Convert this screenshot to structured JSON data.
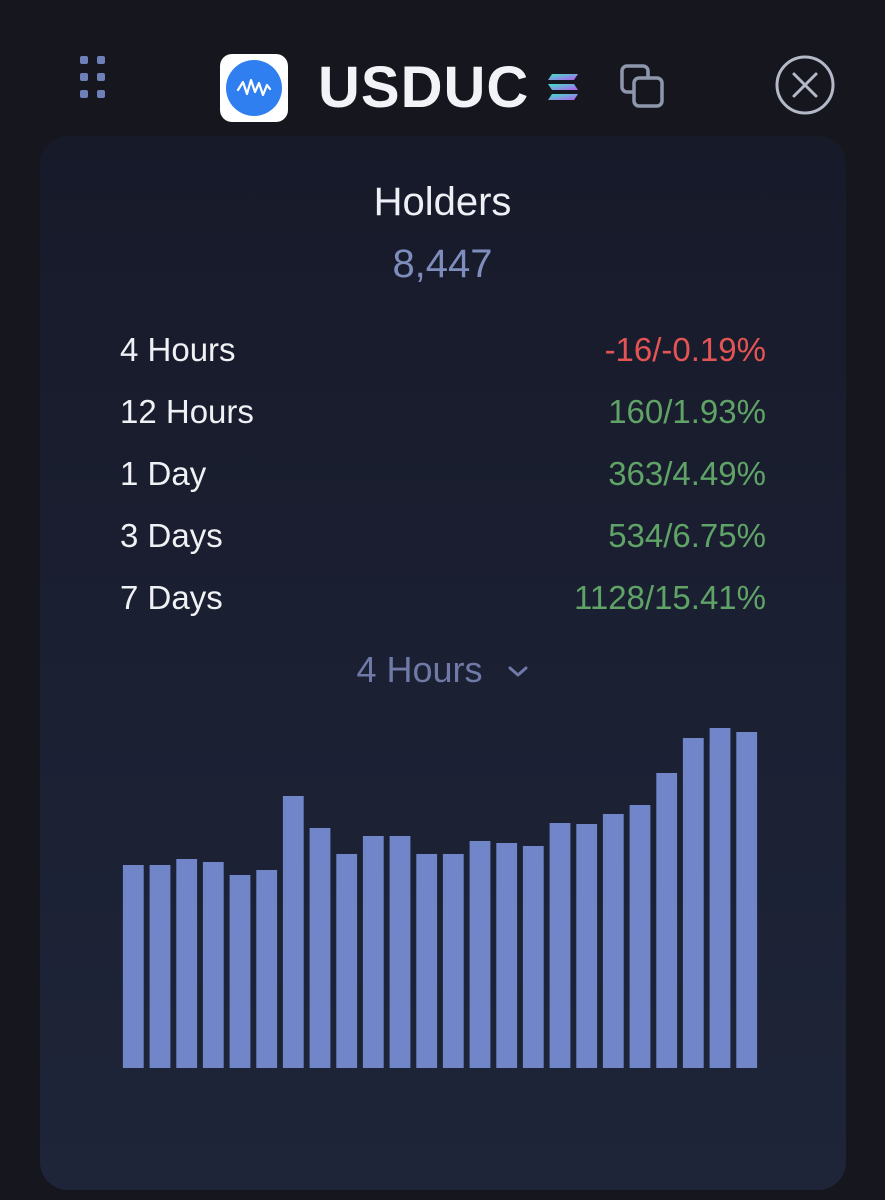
{
  "header": {
    "token_name": "USDUC",
    "icons": {
      "drag": "drag-handle-icon",
      "logo": "token-logo-icon",
      "chain": "solana-chain-icon",
      "copy": "copy-icon",
      "close": "close-icon"
    }
  },
  "metric": {
    "title": "Holders",
    "value": "8,447"
  },
  "stats": [
    {
      "label": "4 Hours",
      "value": "-16/-0.19%",
      "trend": "down"
    },
    {
      "label": "12 Hours",
      "value": "160/1.93%",
      "trend": "up"
    },
    {
      "label": "1 Day",
      "value": "363/4.49%",
      "trend": "up"
    },
    {
      "label": "3 Days",
      "value": "534/6.75%",
      "trend": "up"
    },
    {
      "label": "7 Days",
      "value": "1128/15.41%",
      "trend": "up"
    }
  ],
  "range_select": {
    "selected": "4 Hours"
  },
  "colors": {
    "background": "#15161e",
    "negative": "#e45454",
    "positive": "#5fa466",
    "bar": "#7086c8",
    "muted": "#7f8dbd"
  },
  "chart_data": {
    "type": "bar",
    "values": [
      203,
      203,
      209,
      206,
      193,
      198,
      272,
      240,
      214,
      232,
      232,
      214,
      214,
      227,
      225,
      222,
      245,
      244,
      254,
      263,
      295,
      330,
      340,
      336
    ]
  }
}
